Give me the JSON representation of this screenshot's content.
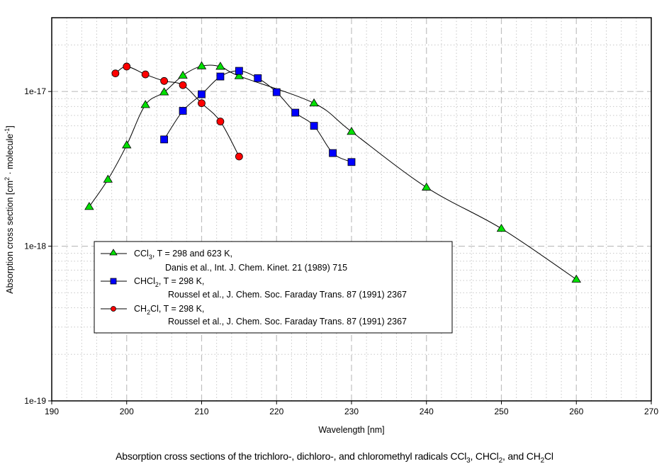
{
  "chart_data": {
    "type": "line",
    "title": "",
    "caption": {
      "prefix": "Absorption cross sections of the trichloro-, dichloro-, and chloromethyl radicals ",
      "parts": [
        {
          "text": "CCl",
          "sub": "3"
        },
        {
          "text": ", CHCl",
          "sub": "2"
        },
        {
          "text": ", and CH",
          "sub": "2"
        },
        {
          "text": "Cl",
          "sub": ""
        }
      ]
    },
    "xlabel": "Wavelength [nm]",
    "ylabel": {
      "main": "Absorption cross section [cm",
      "sup1": "2",
      "mid": " · molecule",
      "sup2": "-1",
      "end": "]"
    },
    "xlim": [
      190,
      270
    ],
    "ylim": [
      1e-19,
      3e-17
    ],
    "yscale": "log",
    "grid": true,
    "x_ticks": [
      190,
      200,
      210,
      220,
      230,
      240,
      250,
      260,
      270
    ],
    "x_tick_labels": [
      "190",
      "200",
      "210",
      "220",
      "230",
      "240",
      "250",
      "260",
      "270"
    ],
    "y_ticks": [
      1e-19,
      1e-18,
      1e-17
    ],
    "y_tick_labels": [
      "1e-19",
      "1e-18",
      "1e-17"
    ],
    "legend_position": "lower-left",
    "series": [
      {
        "name": "CCl3",
        "marker": "triangle",
        "color": "#00e000",
        "legend": {
          "species": "CCl",
          "sub": "3",
          "cond": ",  T = 298 and 623 K,",
          "ref": "Danis et al., Int. J. Chem. Kinet. 21 (1989) 715"
        },
        "x": [
          195,
          197.5,
          200,
          202.5,
          205,
          207.5,
          210,
          212.5,
          215,
          225,
          230,
          240,
          250,
          260
        ],
        "y": [
          1.8e-18,
          2.7e-18,
          4.5e-18,
          8.2e-18,
          9.9e-18,
          1.27e-17,
          1.46e-17,
          1.45e-17,
          1.26e-17,
          8.4e-18,
          5.5e-18,
          2.4e-18,
          1.3e-18,
          6.1e-19
        ]
      },
      {
        "name": "CHCl2",
        "marker": "square",
        "color": "#0000ff",
        "legend": {
          "species": "CHCl",
          "sub": "2",
          "cond": ", T = 298 K,",
          "ref": "Roussel et al., J. Chem. Soc. Faraday Trans. 87 (1991) 2367"
        },
        "x": [
          205,
          207.5,
          210,
          212.5,
          215,
          217.5,
          220,
          222.5,
          225,
          227.5,
          230
        ],
        "y": [
          4.9e-18,
          7.5e-18,
          9.6e-18,
          1.25e-17,
          1.36e-17,
          1.22e-17,
          9.9e-18,
          7.3e-18,
          6e-18,
          4e-18,
          3.5e-18
        ]
      },
      {
        "name": "CH2Cl",
        "marker": "circle",
        "color": "#ff0000",
        "legend": {
          "species": "CH",
          "sub": "2",
          "cond": "Cl, T = 298 K,",
          "ref": "Roussel et al., J. Chem. Soc. Faraday Trans. 87 (1991) 2367"
        },
        "x": [
          198.5,
          200,
          202.5,
          205,
          207.5,
          210,
          212.5,
          215
        ],
        "y": [
          1.31e-17,
          1.45e-17,
          1.29e-17,
          1.17e-17,
          1.1e-17,
          8.4e-18,
          6.4e-18,
          3.8e-18
        ]
      }
    ]
  }
}
